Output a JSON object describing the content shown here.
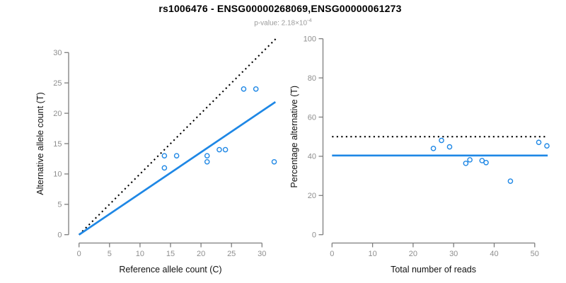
{
  "header": {
    "title": "rs1006476 - ENSG00000268069,ENSG00000061273",
    "p_label": "p-value: 2.18×10",
    "p_exponent": "-4"
  },
  "colors": {
    "accent_blue": "#1E87E5",
    "reference_black": "#000000",
    "axis_gray": "#7d7d7d",
    "tick_label_gray": "#8e8e8e",
    "axis_title_color": "#111111",
    "subtitle_gray": "#9b9b9b"
  },
  "chart_data": [
    {
      "type": "scatter",
      "name": "ref-vs-alt-count-plot",
      "xlabel": "Reference allele count (C)",
      "ylabel": "Alternative allele count (T)",
      "xlim": [
        0,
        32.4
      ],
      "ylim": [
        0,
        32.5
      ],
      "xticks": [
        0,
        5,
        10,
        15,
        20,
        25,
        30
      ],
      "yticks": [
        0,
        5,
        10,
        15,
        20,
        25,
        30
      ],
      "grid": false,
      "legend": "none",
      "marker": "open-circle",
      "points": [
        [
          14,
          13
        ],
        [
          16,
          13
        ],
        [
          14,
          11
        ],
        [
          21,
          13
        ],
        [
          21,
          12
        ],
        [
          23,
          14
        ],
        [
          24,
          14
        ],
        [
          27,
          24
        ],
        [
          29,
          24
        ],
        [
          32,
          12
        ]
      ],
      "lines": [
        {
          "name": "expected-50pct-line",
          "style": "dotted",
          "color": "#000000",
          "from": [
            0,
            0
          ],
          "to": [
            32.3,
            32.3
          ]
        },
        {
          "name": "fitted-proportion-line",
          "style": "solid",
          "color": "#1E87E5",
          "from": [
            0,
            0
          ],
          "to": [
            32.2,
            21.86
          ]
        }
      ]
    },
    {
      "type": "scatter",
      "name": "pct-alt-vs-total-reads-plot",
      "xlabel": "Total number of reads",
      "ylabel": "Percentage alternative (T)",
      "xlim": [
        0,
        53.5
      ],
      "ylim": [
        0,
        100
      ],
      "xticks": [
        0,
        10,
        20,
        30,
        40,
        50
      ],
      "yticks": [
        0,
        20,
        40,
        60,
        80,
        100
      ],
      "grid": false,
      "legend": "none",
      "marker": "open-circle",
      "points": [
        [
          27,
          48.1
        ],
        [
          29,
          44.8
        ],
        [
          25,
          44.0
        ],
        [
          34,
          38.2
        ],
        [
          33,
          36.4
        ],
        [
          37,
          37.8
        ],
        [
          38,
          36.8
        ],
        [
          51,
          47.1
        ],
        [
          53,
          45.3
        ],
        [
          44,
          27.3
        ]
      ],
      "lines": [
        {
          "name": "expected-50pct-line",
          "style": "dotted",
          "color": "#000000",
          "from": [
            0,
            50
          ],
          "to": [
            53.2,
            50
          ]
        },
        {
          "name": "mean-alt-percentage-line",
          "style": "solid",
          "color": "#1E87E5",
          "from": [
            0,
            40.4
          ],
          "to": [
            53.2,
            40.4
          ]
        }
      ]
    }
  ]
}
